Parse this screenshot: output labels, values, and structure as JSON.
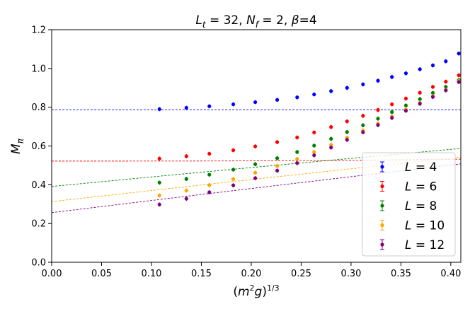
{
  "chart_data": {
    "type": "scatter",
    "title": "L_t = 32, N_f = 2, β=4",
    "title_parts": {
      "lt": "32",
      "nf": "2",
      "beta": "4"
    },
    "xlabel": "(m²g)^{1/3}",
    "ylabel": "M_π",
    "xlim": [
      0.0,
      0.41
    ],
    "ylim": [
      0.0,
      1.2
    ],
    "x_ticks": [
      "0.00",
      "0.05",
      "0.10",
      "0.15",
      "0.20",
      "0.25",
      "0.30",
      "0.35",
      "0.40"
    ],
    "y_ticks": [
      "0.0",
      "0.2",
      "0.4",
      "0.6",
      "0.8",
      "1.0",
      "1.2"
    ],
    "grid": false,
    "legend_position": "lower-right",
    "x": [
      0.108,
      0.135,
      0.158,
      0.182,
      0.204,
      0.226,
      0.246,
      0.263,
      0.28,
      0.296,
      0.312,
      0.327,
      0.341,
      0.355,
      0.369,
      0.382,
      0.395,
      0.408
    ],
    "series": [
      {
        "name": "L = 4",
        "L": "4",
        "color": "#0000ff",
        "values": [
          0.79,
          0.797,
          0.805,
          0.815,
          0.826,
          0.838,
          0.851,
          0.866,
          0.883,
          0.9,
          0.918,
          0.937,
          0.956,
          0.975,
          0.996,
          1.016,
          1.037,
          1.077
        ]
      },
      {
        "name": "L = 6",
        "L": "6",
        "color": "#ff0000",
        "values": [
          0.535,
          0.547,
          0.56,
          0.578,
          0.598,
          0.62,
          0.644,
          0.67,
          0.698,
          0.727,
          0.756,
          0.786,
          0.815,
          0.845,
          0.875,
          0.905,
          0.932,
          0.965
        ]
      },
      {
        "name": "L = 8",
        "L": "8",
        "color": "#008000",
        "values": [
          0.411,
          0.43,
          0.452,
          0.478,
          0.506,
          0.537,
          0.569,
          0.602,
          0.637,
          0.672,
          0.707,
          0.741,
          0.775,
          0.809,
          0.842,
          0.874,
          0.905,
          0.94
        ]
      },
      {
        "name": "L = 10",
        "L": "10",
        "color": "#ffa500",
        "values": [
          0.345,
          0.37,
          0.398,
          0.429,
          0.462,
          0.497,
          0.533,
          0.569,
          0.606,
          0.643,
          0.68,
          0.716,
          0.752,
          0.788,
          0.823,
          0.857,
          0.89,
          0.935
        ]
      },
      {
        "name": "L = 12",
        "L": "12",
        "color": "#800080",
        "values": [
          0.298,
          0.328,
          0.361,
          0.397,
          0.434,
          0.473,
          0.512,
          0.552,
          0.592,
          0.632,
          0.671,
          0.708,
          0.745,
          0.782,
          0.818,
          0.853,
          0.887,
          0.93
        ]
      }
    ],
    "fit_curves": [
      {
        "series": "L = 4",
        "color": "#0000ff",
        "a": 0.787,
        "b": 0.014,
        "c": 0.075,
        "p": 4
      },
      {
        "series": "L = 6",
        "color": "#ff0000",
        "a": 0.522,
        "b": 0.162,
        "c": 0.285,
        "p": 3
      },
      {
        "series": "L = 8",
        "color": "#008000",
        "a": 0.391,
        "b": 0.498,
        "c": 0.05,
        "p": 1
      },
      {
        "series": "L = 10",
        "color": "#ffa500",
        "a": 0.313,
        "b": 0.577,
        "c": 0.043,
        "p": 1
      },
      {
        "series": "L = 12",
        "color": "#800080",
        "a": 0.256,
        "b": 0.632,
        "c": 0.046,
        "p": 1
      }
    ]
  }
}
